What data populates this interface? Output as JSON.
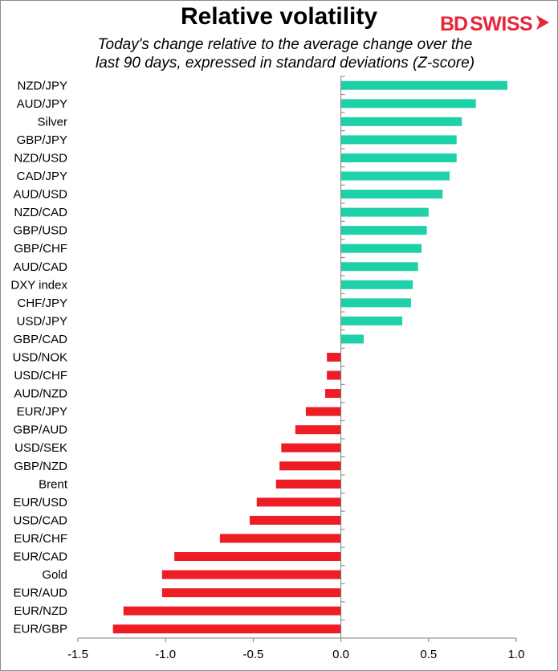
{
  "title": "Relative volatility",
  "subtitle_line1": "Today's change relative to the  average change over the",
  "subtitle_line2": "last 90 days, expressed in standard deviations (Z-score)",
  "logo": {
    "bd": "BD",
    "swiss": "SWISS",
    "icon": "arrow-icon"
  },
  "colors": {
    "positive": "#1fd1a8",
    "negative": "#ee1c25",
    "axis": "#808080"
  },
  "chart_data": {
    "type": "bar",
    "orientation": "horizontal",
    "title": "Relative volatility",
    "subtitle": "Today's change relative to the  average change over the last 90 days, expressed in standard deviations (Z-score)",
    "xlabel": "",
    "ylabel": "",
    "xlim": [
      -1.5,
      1.0
    ],
    "x_ticks": [
      -1.5,
      -1.0,
      -0.5,
      0.0,
      0.5,
      1.0
    ],
    "x_tick_labels": [
      "-1.5",
      "-1.0",
      "-0.5",
      "0.0",
      "0.5",
      "1.0"
    ],
    "grid": false,
    "categories": [
      "NZD/JPY",
      "AUD/JPY",
      "Silver",
      "GBP/JPY",
      "NZD/USD",
      "CAD/JPY",
      "AUD/USD",
      "NZD/CAD",
      "GBP/USD",
      "GBP/CHF",
      "AUD/CAD",
      "DXY index",
      "CHF/JPY",
      "USD/JPY",
      "GBP/CAD",
      "USD/NOK",
      "USD/CHF",
      "AUD/NZD",
      "EUR/JPY",
      "GBP/AUD",
      "USD/SEK",
      "GBP/NZD",
      "Brent",
      "EUR/USD",
      "USD/CAD",
      "EUR/CHF",
      "EUR/CAD",
      "Gold",
      "EUR/AUD",
      "EUR/NZD",
      "EUR/GBP"
    ],
    "values": [
      0.95,
      0.77,
      0.69,
      0.66,
      0.66,
      0.62,
      0.58,
      0.5,
      0.49,
      0.46,
      0.44,
      0.41,
      0.4,
      0.35,
      0.13,
      -0.08,
      -0.08,
      -0.09,
      -0.2,
      -0.26,
      -0.34,
      -0.35,
      -0.37,
      -0.48,
      -0.52,
      -0.69,
      -0.95,
      -1.02,
      -1.02,
      -1.24,
      -1.3
    ]
  }
}
